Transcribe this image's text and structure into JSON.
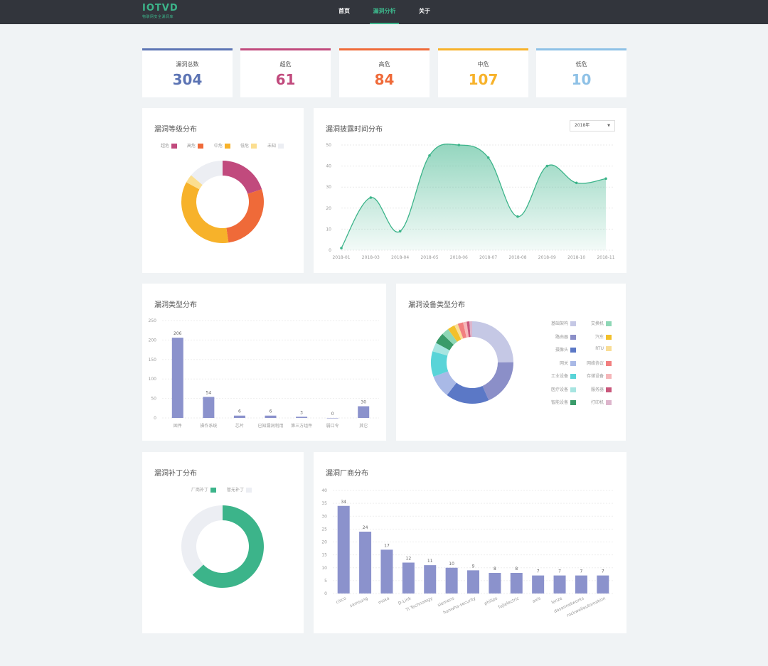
{
  "nav": {
    "logo": "IOTVD",
    "logo_sub": "物联网安全漏洞库",
    "items": [
      {
        "label": "首页"
      },
      {
        "label": "漏洞分析"
      },
      {
        "label": "关于"
      }
    ],
    "active_index": 1
  },
  "stats": [
    {
      "label": "漏洞总数",
      "value": "304",
      "color": "#5c74b4"
    },
    {
      "label": "超危",
      "value": "61",
      "color": "#c14a7d"
    },
    {
      "label": "高危",
      "value": "84",
      "color": "#ef6a39"
    },
    {
      "label": "中危",
      "value": "107",
      "color": "#f7b22a"
    },
    {
      "label": "低危",
      "value": "10",
      "color": "#8ec1e6"
    }
  ],
  "level_card": {
    "title": "漏洞等级分布",
    "legend": [
      {
        "label": "超危",
        "color": "#c14a7d"
      },
      {
        "label": "高危",
        "color": "#ef6a39"
      },
      {
        "label": "中危",
        "color": "#f7b22a"
      },
      {
        "label": "低危",
        "color": "#fbde90"
      },
      {
        "label": "未知",
        "color": "#eceef3"
      }
    ]
  },
  "time_card": {
    "title": "漏洞披露时间分布",
    "select_value": "2018年"
  },
  "type_card": {
    "title": "漏洞类型分布"
  },
  "device_card": {
    "title": "漏洞设备类型分布",
    "legend_left": [
      {
        "label": "基础架构",
        "color": "#c5c8e5"
      },
      {
        "label": "路由器",
        "color": "#8b8fc8"
      },
      {
        "label": "摄像头",
        "color": "#5b78c6"
      },
      {
        "label": "网关",
        "color": "#a9b9e6"
      },
      {
        "label": "工业设备",
        "color": "#59d4d8"
      },
      {
        "label": "医疗设备",
        "color": "#a7e5e1"
      },
      {
        "label": "智能设备",
        "color": "#3a9b6a"
      }
    ],
    "legend_right": [
      {
        "label": "交换机",
        "color": "#8ed7b6"
      },
      {
        "label": "汽车",
        "color": "#f2c02b"
      },
      {
        "label": "RTU",
        "color": "#f9dd96"
      },
      {
        "label": "网络协议",
        "color": "#f27f7f"
      },
      {
        "label": "存储设备",
        "color": "#f5b6b9"
      },
      {
        "label": "服务器",
        "color": "#c9577b"
      },
      {
        "label": "打印机",
        "color": "#ddb5cc"
      }
    ]
  },
  "patch_card": {
    "title": "漏洞补丁分布",
    "legend": [
      {
        "label": "厂商补丁",
        "color": "#3cb48a"
      },
      {
        "label": "暂无补丁",
        "color": "#eceef3"
      }
    ]
  },
  "vendor_card": {
    "title": "漏洞厂商分布"
  },
  "chart_data": [
    {
      "type": "pie",
      "title": "漏洞等级分布",
      "variant": "donut",
      "labels": [
        "超危",
        "高危",
        "中危",
        "低危",
        "未知"
      ],
      "values": [
        61,
        84,
        107,
        10,
        42
      ],
      "colors": [
        "#c14a7d",
        "#ef6a39",
        "#f7b22a",
        "#fbde90",
        "#eceef3"
      ]
    },
    {
      "type": "area",
      "title": "漏洞披露时间分布",
      "x": [
        "2018-01",
        "2018-03",
        "2018-04",
        "2018-05",
        "2018-06",
        "2018-07",
        "2018-08",
        "2018-09",
        "2018-10",
        "2018-11"
      ],
      "y": [
        1,
        25,
        9,
        45,
        50,
        44,
        16,
        40,
        32,
        34
      ],
      "ylim": [
        0,
        50
      ],
      "yticks": [
        0,
        10,
        20,
        30,
        40,
        50
      ],
      "color": "#3cb48a",
      "grid": true
    },
    {
      "type": "bar",
      "title": "漏洞类型分布",
      "categories": [
        "固件",
        "操作系统",
        "芯片",
        "已知漏洞利用",
        "第三方组件",
        "弱口令",
        "其它"
      ],
      "values": [
        206,
        54,
        6,
        6,
        3,
        0,
        30
      ],
      "ylim": [
        0,
        250
      ],
      "yticks": [
        0,
        50,
        100,
        150,
        200,
        250
      ],
      "color": "#8b92cc",
      "grid": true
    },
    {
      "type": "pie",
      "title": "漏洞设备类型分布",
      "variant": "donut",
      "labels": [
        "基础架构",
        "路由器",
        "摄像头",
        "网关",
        "工业设备",
        "医疗设备",
        "智能设备",
        "交换机",
        "汽车",
        "RTU",
        "网络协议",
        "存储设备",
        "服务器",
        "打印机"
      ],
      "values": [
        70,
        52,
        48,
        25,
        28,
        10,
        12,
        8,
        8,
        4,
        6,
        4,
        3,
        3
      ],
      "colors": [
        "#c5c8e5",
        "#8b8fc8",
        "#5b78c6",
        "#a9b9e6",
        "#59d4d8",
        "#a7e5e1",
        "#3a9b6a",
        "#8ed7b6",
        "#f2c02b",
        "#f9dd96",
        "#f27f7f",
        "#f5b6b9",
        "#c9577b",
        "#ddb5cc"
      ]
    },
    {
      "type": "pie",
      "title": "漏洞补丁分布",
      "variant": "donut",
      "labels": [
        "厂商补丁",
        "暂无补丁"
      ],
      "values": [
        63,
        37
      ],
      "colors": [
        "#3cb48a",
        "#eceef3"
      ]
    },
    {
      "type": "bar",
      "title": "漏洞厂商分布",
      "categories": [
        "cisco",
        "samsung",
        "moxa",
        "D-Link",
        "Ti Technology",
        "siemens",
        "hanwha-security",
        "philips",
        "fujielectric",
        "axis",
        "lenze",
        "dasannetworks",
        "rockwellautomation"
      ],
      "values": [
        34,
        24,
        17,
        12,
        11,
        10,
        9,
        8,
        8,
        7,
        7,
        7,
        7
      ],
      "ylim": [
        0,
        40
      ],
      "yticks": [
        0,
        5,
        10,
        15,
        20,
        25,
        30,
        35,
        40
      ],
      "color": "#8b92cc",
      "grid": true
    }
  ]
}
